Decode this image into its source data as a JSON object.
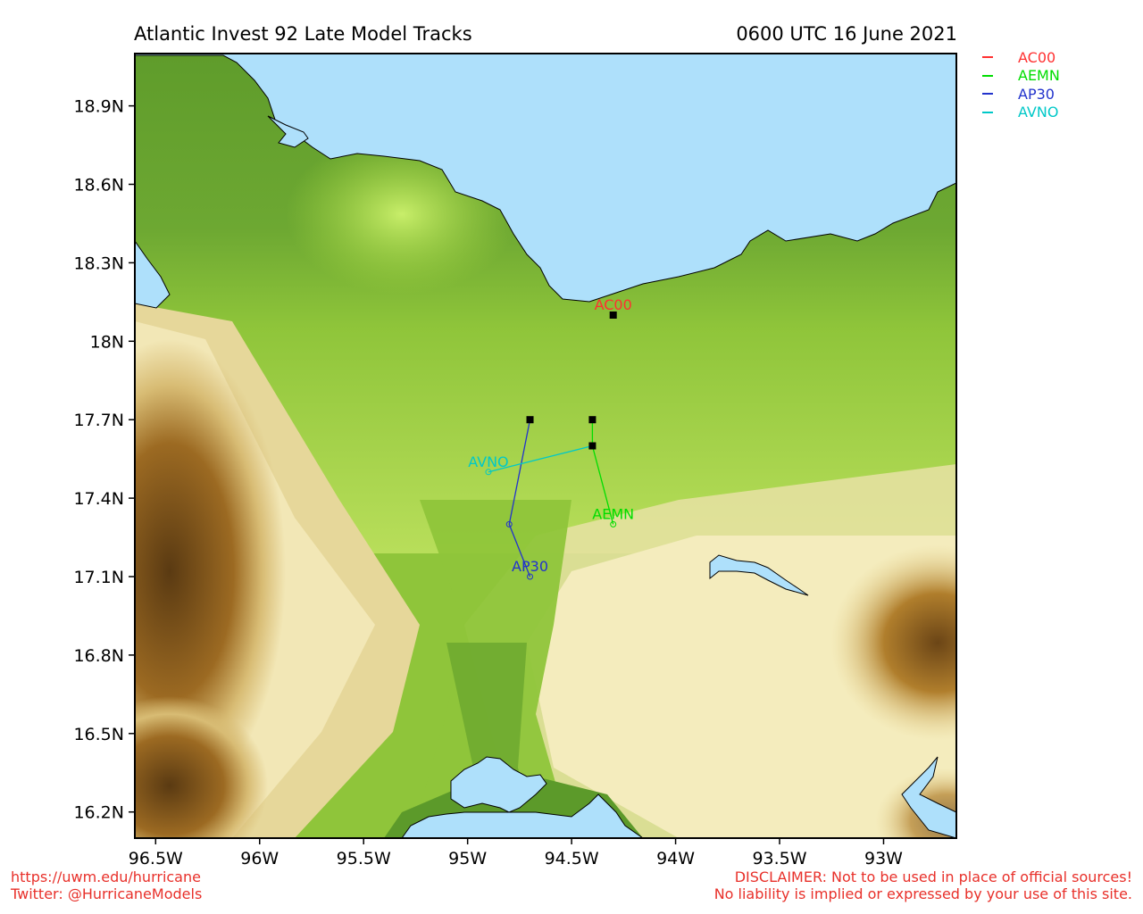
{
  "header": {
    "title": "Atlantic Invest 92 Late Model Tracks",
    "timestamp": "0600 UTC 16 June 2021"
  },
  "map": {
    "lon_range": [
      -96.6,
      -92.65
    ],
    "lat_range": [
      16.1,
      19.1
    ],
    "x_ticks": [
      {
        "lon": -96.5,
        "label": "96.5W"
      },
      {
        "lon": -96.0,
        "label": "96W"
      },
      {
        "lon": -95.5,
        "label": "95.5W"
      },
      {
        "lon": -95.0,
        "label": "95W"
      },
      {
        "lon": -94.5,
        "label": "94.5W"
      },
      {
        "lon": -94.0,
        "label": "94W"
      },
      {
        "lon": -93.5,
        "label": "93.5W"
      },
      {
        "lon": -93.0,
        "label": "93W"
      }
    ],
    "y_ticks": [
      {
        "lat": 18.9,
        "label": "18.9N"
      },
      {
        "lat": 18.6,
        "label": "18.6N"
      },
      {
        "lat": 18.3,
        "label": "18.3N"
      },
      {
        "lat": 18.0,
        "label": "18N"
      },
      {
        "lat": 17.7,
        "label": "17.7N"
      },
      {
        "lat": 17.4,
        "label": "17.4N"
      },
      {
        "lat": 17.1,
        "label": "17.1N"
      },
      {
        "lat": 16.8,
        "label": "16.8N"
      },
      {
        "lat": 16.5,
        "label": "16.5N"
      },
      {
        "lat": 16.2,
        "label": "16.2N"
      }
    ],
    "colors": {
      "water": "#aee0fb",
      "lowland": "#5c9a2a",
      "midland": "#a6d63c",
      "highland": "#f5edbe",
      "mountain": "#6b4516",
      "track_ac00": "#ff3030",
      "track_aemn": "#00dd00",
      "track_ap30": "#2233cc",
      "track_avno": "#00c8c8"
    }
  },
  "legend": [
    {
      "name": "AC00",
      "color": "#ff3030"
    },
    {
      "name": "AEMN",
      "color": "#00dd00"
    },
    {
      "name": "AP30",
      "color": "#2233cc"
    },
    {
      "name": "AVNO",
      "color": "#00c8c8"
    }
  ],
  "tracks": [
    {
      "model": "AC00",
      "color": "#ff3030",
      "points": [
        [
          -94.3,
          18.1
        ]
      ]
    },
    {
      "model": "AEMN",
      "color": "#00dd00",
      "points": [
        [
          -94.4,
          17.7
        ],
        [
          -94.4,
          17.6
        ],
        [
          -94.3,
          17.3
        ]
      ]
    },
    {
      "model": "AP30",
      "color": "#2233cc",
      "points": [
        [
          -94.7,
          17.7
        ],
        [
          -94.8,
          17.3
        ],
        [
          -94.7,
          17.1
        ]
      ]
    },
    {
      "model": "AVNO",
      "color": "#00c8c8",
      "points": [
        [
          -94.4,
          17.6
        ],
        [
          -94.9,
          17.5
        ]
      ]
    }
  ],
  "footer": {
    "url": "https://uwm.edu/hurricane",
    "twitter": "Twitter: @HurricaneModels",
    "disclaimer": "DISCLAIMER: Not to be used in place of official sources!",
    "liability": "No liability is implied or expressed by your use of this site."
  }
}
